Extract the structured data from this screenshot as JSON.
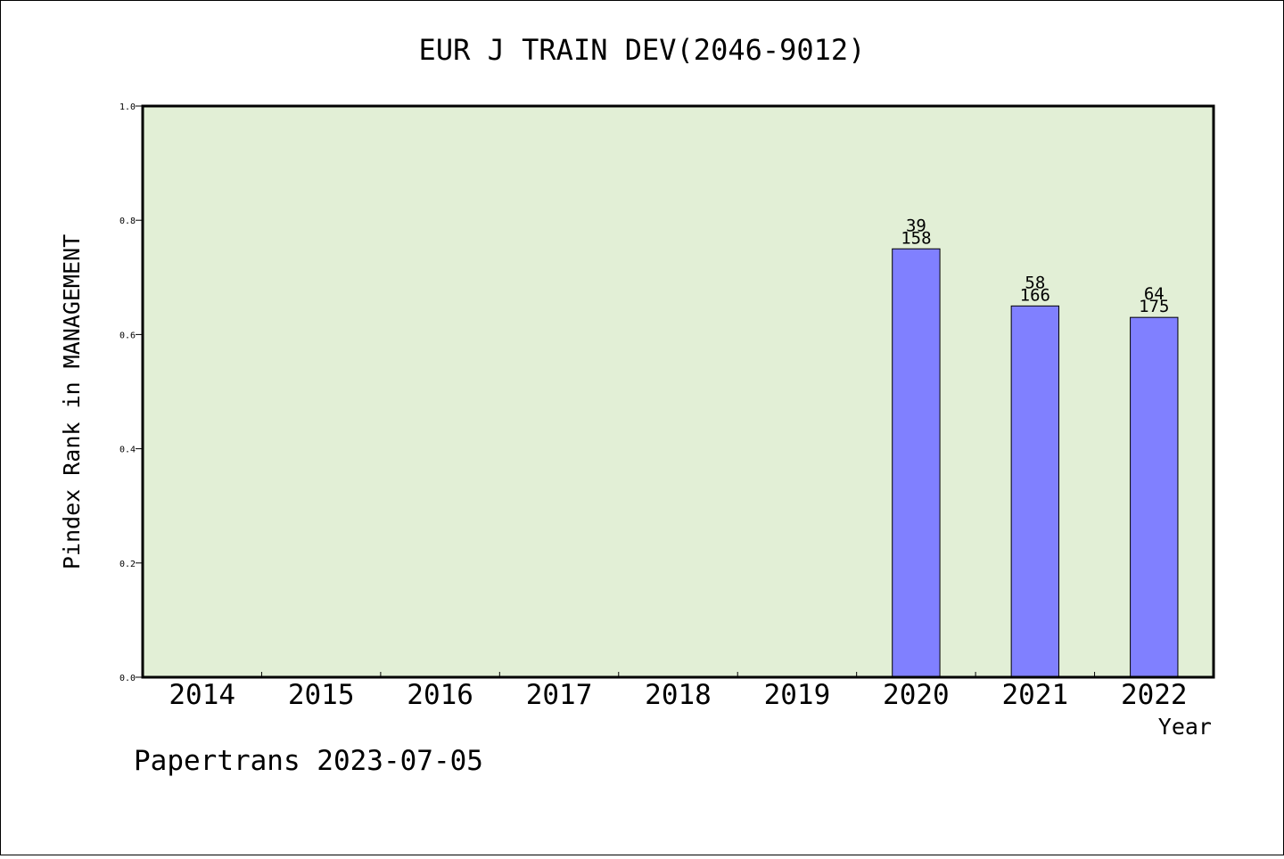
{
  "chart_data": {
    "type": "bar",
    "title": "EUR J TRAIN DEV(2046-9012)",
    "xlabel": "Year",
    "ylabel": "Pindex Rank in MANAGEMENT",
    "ylim": [
      0,
      1.0
    ],
    "yticks": [
      "0.0",
      "0.2",
      "0.4",
      "0.6",
      "0.8",
      "1.0"
    ],
    "categories": [
      "2014",
      "2015",
      "2016",
      "2017",
      "2018",
      "2019",
      "2020",
      "2021",
      "2022"
    ],
    "values": [
      null,
      null,
      null,
      null,
      null,
      null,
      0.75,
      0.65,
      0.63
    ],
    "bar_labels": [
      null,
      null,
      null,
      null,
      null,
      null,
      {
        "top": "39",
        "bottom": "158"
      },
      {
        "top": "58",
        "bottom": "166"
      },
      {
        "top": "64",
        "bottom": "175"
      }
    ],
    "grid": false,
    "colors": {
      "plot_background": "#e2efd6",
      "bar_fill": "#8080ff",
      "bar_stroke": "#000000"
    }
  },
  "footer": {
    "text": "Papertrans 2023-07-05"
  }
}
